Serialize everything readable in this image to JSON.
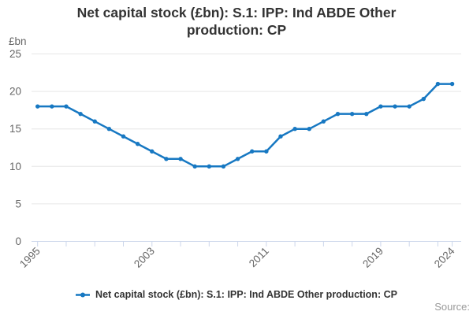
{
  "chart_data": {
    "type": "line",
    "title": "Net capital stock (£bn): S.1: IPP: Ind ABDE Other production: CP",
    "ylabel": "£bn",
    "xlabel": "",
    "legend_label": "Net capital stock (£bn): S.1: IPP: Ind ABDE Other production: CP",
    "source_label": "Source:",
    "x": [
      1995,
      1996,
      1997,
      1998,
      1999,
      2000,
      2001,
      2002,
      2003,
      2004,
      2005,
      2006,
      2007,
      2008,
      2009,
      2010,
      2011,
      2012,
      2013,
      2014,
      2015,
      2016,
      2017,
      2018,
      2019,
      2020,
      2021,
      2022,
      2023,
      2024
    ],
    "values": [
      18,
      18,
      18,
      17,
      16,
      15,
      14,
      13,
      12,
      11,
      11,
      10,
      10,
      10,
      11,
      12,
      12,
      14,
      15,
      15,
      16,
      17,
      17,
      17,
      18,
      18,
      18,
      19,
      21,
      21
    ],
    "y_ticks": [
      0,
      5,
      10,
      15,
      20,
      25
    ],
    "x_labeled_ticks": [
      1995,
      2003,
      2011,
      2019,
      2024
    ],
    "x_tick_interval": 2,
    "ylim": [
      0,
      25
    ],
    "grid": "horizontal",
    "legend_position": "bottom-center",
    "colors": {
      "line": "#1778c2",
      "grid": "#e6e6e6",
      "axis": "#ccd6eb",
      "tick_label": "#666666",
      "title": "#333333",
      "legend_text": "#333333",
      "source": "#999999"
    }
  }
}
